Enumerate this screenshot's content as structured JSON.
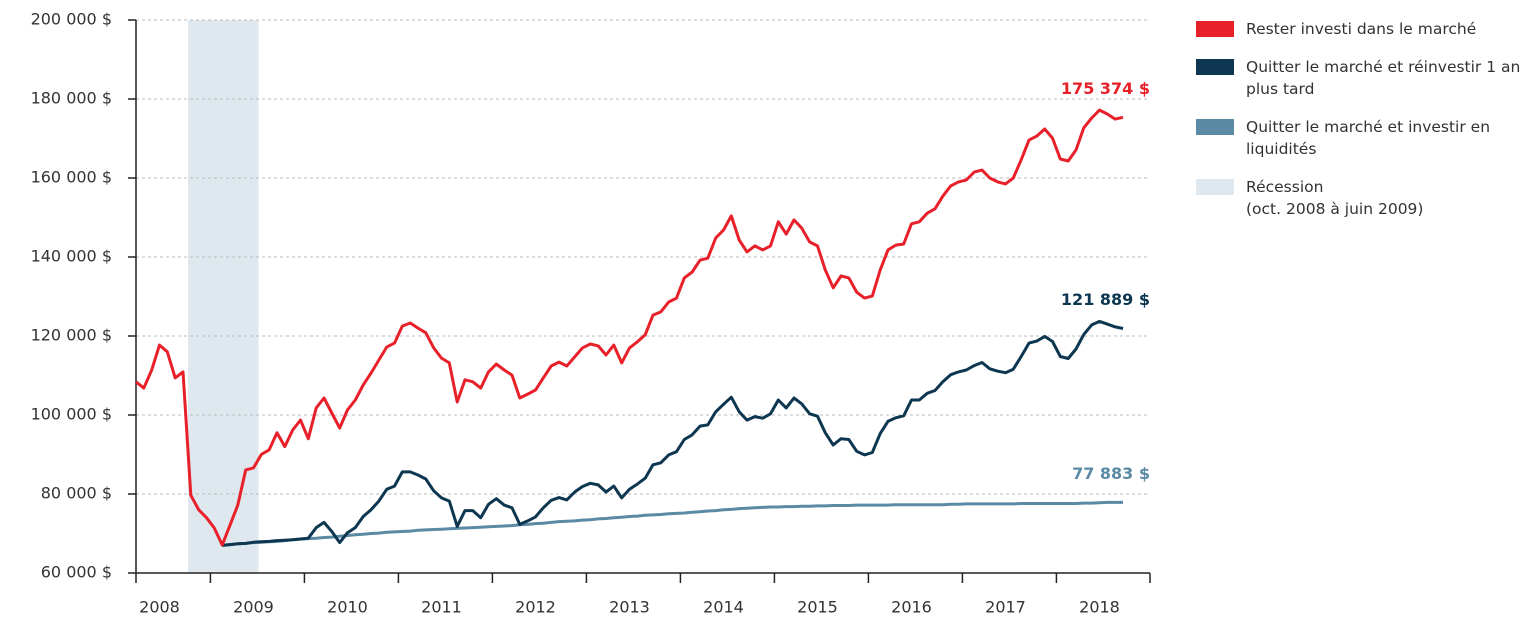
{
  "chart_data": {
    "type": "line",
    "categories": [
      null,
      null,
      null,
      "2008",
      null,
      null,
      null,
      null,
      null,
      null,
      null,
      null,
      null,
      null,
      null,
      "2009",
      null,
      null,
      null,
      null,
      null,
      null,
      null,
      null,
      null,
      null,
      null,
      "2010",
      null,
      null,
      null,
      null,
      null,
      null,
      null,
      null,
      null,
      null,
      null,
      "2011",
      null,
      null,
      null,
      null,
      null,
      null,
      null,
      null,
      null,
      null,
      null,
      "2012",
      null,
      null,
      null,
      null,
      null,
      null,
      null,
      null,
      null,
      null,
      null,
      "2013",
      null,
      null,
      null,
      null,
      null,
      null,
      null,
      null,
      null,
      null,
      null,
      "2014",
      null,
      null,
      null,
      null,
      null,
      null,
      null,
      null,
      null,
      null,
      null,
      "2015",
      null,
      null,
      null,
      null,
      null,
      null,
      null,
      null,
      null,
      null,
      null,
      "2016",
      null,
      null,
      null,
      null,
      null,
      null,
      null,
      null,
      null,
      null,
      null,
      "2017",
      null,
      null,
      null,
      null,
      null,
      null,
      null,
      null,
      null,
      null,
      null,
      "2018",
      null,
      null,
      null
    ],
    "series": [
      {
        "name": "Rester investi dans le marché",
        "color": "#e8202a",
        "values": [
          108400,
          106800,
          111400,
          117700,
          116000,
          109400,
          110900,
          79700,
          76000,
          74000,
          71400,
          67100,
          72100,
          77200,
          86100,
          86600,
          90000,
          91200,
          95500,
          92000,
          96200,
          98700,
          94000,
          101800,
          104300,
          100500,
          96700,
          101300,
          103800,
          107600,
          110600,
          113900,
          117200,
          118200,
          122500,
          123300,
          122000,
          120800,
          117000,
          114400,
          113200,
          103300,
          108900,
          108400,
          106800,
          110900,
          112900,
          111400,
          110100,
          104300,
          105300,
          106300,
          109400,
          112400,
          113400,
          112400,
          114700,
          117000,
          118000,
          117500,
          115200,
          117700,
          113200,
          117000,
          118500,
          120300,
          125300,
          126100,
          128600,
          129600,
          134700,
          136200,
          139200,
          139700,
          144800,
          146800,
          150400,
          144300,
          141300,
          142800,
          141800,
          142800,
          148900,
          145800,
          149400,
          147300,
          143800,
          142800,
          136700,
          132200,
          135200,
          134700,
          131100,
          129600,
          130100,
          136700,
          141800,
          143000,
          143300,
          148400,
          148900,
          151100,
          152200,
          155400,
          158000,
          159000,
          159500,
          161500,
          162000,
          160000,
          159000,
          158500,
          160000,
          164600,
          169600,
          170600,
          172400,
          170100,
          164800,
          164300,
          167100,
          172700,
          175200,
          177200,
          176200,
          174900,
          175374
        ],
        "value_labels": [
          null,
          null,
          null,
          null,
          null,
          null,
          null,
          null,
          null,
          null,
          null,
          null,
          null,
          null,
          null,
          null,
          null,
          null,
          null,
          null,
          null,
          null,
          null,
          null,
          null,
          null,
          null,
          null,
          null,
          null,
          null,
          null,
          null,
          null,
          null,
          null,
          null,
          null,
          null,
          null,
          null,
          null,
          null,
          null,
          null,
          null,
          null,
          null,
          null,
          null,
          null,
          null,
          null,
          null,
          null,
          null,
          null,
          null,
          null,
          null,
          null,
          null,
          null,
          null,
          null,
          null,
          null,
          null,
          null,
          null,
          null,
          null,
          null,
          null,
          null,
          null,
          null,
          null,
          null,
          null,
          null,
          null,
          null,
          null,
          null,
          null,
          null,
          null,
          null,
          null,
          null,
          null,
          null,
          null,
          null,
          null,
          null,
          null,
          null,
          null,
          null,
          null,
          null,
          null,
          null,
          null,
          null,
          null,
          null,
          null,
          null,
          null,
          null,
          null,
          null,
          null,
          null,
          null,
          null,
          null,
          null,
          null,
          null,
          null,
          null,
          null,
          "175 374 $"
        ]
      },
      {
        "name": "Quitter le marché et réinvestir 1 an plus tard",
        "color": "#0d3650",
        "values": [
          null,
          null,
          null,
          null,
          null,
          null,
          null,
          null,
          null,
          null,
          null,
          67000,
          67200,
          67400,
          67500,
          67800,
          67900,
          68000,
          68200,
          68300,
          68400,
          68600,
          68800,
          71500,
          72800,
          70500,
          67700,
          70200,
          71500,
          74300,
          76000,
          78200,
          81200,
          82000,
          85600,
          85600,
          84800,
          83800,
          80800,
          79000,
          78200,
          71800,
          75800,
          75800,
          74000,
          77400,
          78800,
          77200,
          76500,
          72300,
          73200,
          74200,
          76500,
          78400,
          79100,
          78500,
          80500,
          81900,
          82700,
          82300,
          80500,
          82000,
          79000,
          81200,
          82500,
          84000,
          87400,
          87900,
          89900,
          90700,
          93800,
          95000,
          97200,
          97500,
          100800,
          102700,
          104500,
          100800,
          98700,
          99600,
          99200,
          100300,
          103800,
          101800,
          104300,
          102800,
          100300,
          99700,
          95500,
          92400,
          94000,
          93800,
          90800,
          89900,
          90500,
          95300,
          98400,
          99300,
          99800,
          103800,
          103800,
          105500,
          106200,
          108400,
          110200,
          110900,
          111400,
          112500,
          113300,
          111700,
          111100,
          110700,
          111600,
          114800,
          118200,
          118700,
          119900,
          118600,
          114800,
          114300,
          116700,
          120400,
          122800,
          123700,
          123000,
          122300,
          121889
        ],
        "value_labels": [
          null,
          null,
          null,
          null,
          null,
          null,
          null,
          null,
          null,
          null,
          null,
          null,
          null,
          null,
          null,
          null,
          null,
          null,
          null,
          null,
          null,
          null,
          null,
          null,
          null,
          null,
          null,
          null,
          null,
          null,
          null,
          null,
          null,
          null,
          null,
          null,
          null,
          null,
          null,
          null,
          null,
          null,
          null,
          null,
          null,
          null,
          null,
          null,
          null,
          null,
          null,
          null,
          null,
          null,
          null,
          null,
          null,
          null,
          null,
          null,
          null,
          null,
          null,
          null,
          null,
          null,
          null,
          null,
          null,
          null,
          null,
          null,
          null,
          null,
          null,
          null,
          null,
          null,
          null,
          null,
          null,
          null,
          null,
          null,
          null,
          null,
          null,
          null,
          null,
          null,
          null,
          null,
          null,
          null,
          null,
          null,
          null,
          null,
          null,
          null,
          null,
          null,
          null,
          null,
          null,
          null,
          null,
          null,
          null,
          null,
          null,
          null,
          null,
          null,
          null,
          null,
          null,
          null,
          null,
          null,
          null,
          null,
          null,
          null,
          null,
          null,
          "121 889 $"
        ]
      },
      {
        "name": "Quitter le marché et investir en liquidités",
        "color": "#5b8aa5",
        "values": [
          null,
          null,
          null,
          null,
          null,
          null,
          null,
          null,
          null,
          null,
          null,
          67000,
          67200,
          67400,
          67500,
          67700,
          67800,
          67900,
          68000,
          68200,
          68400,
          68600,
          68700,
          68800,
          69000,
          69100,
          69300,
          69500,
          69700,
          69800,
          70000,
          70100,
          70300,
          70400,
          70500,
          70600,
          70800,
          70900,
          71000,
          71100,
          71200,
          71300,
          71400,
          71500,
          71600,
          71700,
          71800,
          71900,
          72000,
          72200,
          72300,
          72500,
          72600,
          72800,
          73000,
          73100,
          73200,
          73400,
          73500,
          73700,
          73800,
          74000,
          74100,
          74300,
          74400,
          74600,
          74700,
          74800,
          75000,
          75100,
          75200,
          75400,
          75500,
          75700,
          75800,
          76000,
          76100,
          76300,
          76400,
          76500,
          76600,
          76700,
          76700,
          76800,
          76800,
          76900,
          76900,
          77000,
          77000,
          77100,
          77100,
          77100,
          77200,
          77200,
          77200,
          77200,
          77200,
          77300,
          77300,
          77300,
          77300,
          77300,
          77300,
          77300,
          77400,
          77400,
          77500,
          77500,
          77500,
          77500,
          77500,
          77500,
          77500,
          77600,
          77600,
          77600,
          77600,
          77600,
          77600,
          77600,
          77600,
          77700,
          77700,
          77800,
          77883,
          77883,
          77883
        ],
        "value_labels": [
          null,
          null,
          null,
          null,
          null,
          null,
          null,
          null,
          null,
          null,
          null,
          null,
          null,
          null,
          null,
          null,
          null,
          null,
          null,
          null,
          null,
          null,
          null,
          null,
          null,
          null,
          null,
          null,
          null,
          null,
          null,
          null,
          null,
          null,
          null,
          null,
          null,
          null,
          null,
          null,
          null,
          null,
          null,
          null,
          null,
          null,
          null,
          null,
          null,
          null,
          null,
          null,
          null,
          null,
          null,
          null,
          null,
          null,
          null,
          null,
          null,
          null,
          null,
          null,
          null,
          null,
          null,
          null,
          null,
          null,
          null,
          null,
          null,
          null,
          null,
          null,
          null,
          null,
          null,
          null,
          null,
          null,
          null,
          null,
          null,
          null,
          null,
          null,
          null,
          null,
          null,
          null,
          null,
          null,
          null,
          null,
          null,
          null,
          null,
          null,
          null,
          null,
          null,
          null,
          null,
          null,
          null,
          null,
          null,
          null,
          null,
          null,
          null,
          null,
          null,
          null,
          null,
          null,
          null,
          null,
          null,
          null,
          null,
          null,
          null,
          null,
          "77 883 $"
        ]
      }
    ],
    "bands": [
      {
        "name": "Récession",
        "note": "(oct. 2008 à juin 2009)",
        "color": "#dfe8ee",
        "start": 6,
        "end": 14
      }
    ],
    "ylim": [
      60000,
      200000
    ],
    "yticks": [
      {
        "value": 60000,
        "label": "60 000 $"
      },
      {
        "value": 80000,
        "label": "80 000 $"
      },
      {
        "value": 100000,
        "label": "100 000 $"
      },
      {
        "value": 120000,
        "label": "120 000 $"
      },
      {
        "value": 140000,
        "label": "140 000 $"
      },
      {
        "value": 160000,
        "label": "160 000 $"
      },
      {
        "value": 180000,
        "label": "180 000 $"
      },
      {
        "value": 200000,
        "label": "200 000 $"
      }
    ],
    "grid": true,
    "legend": "right"
  }
}
